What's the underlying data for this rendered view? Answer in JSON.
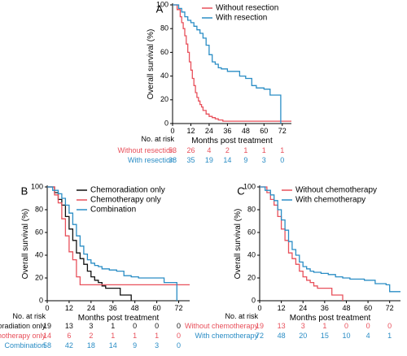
{
  "colors": {
    "red": "#e8505b",
    "blue": "#2a8dc5",
    "black": "#111111"
  },
  "chart_data": [
    {
      "type": "line",
      "panel_label": "A",
      "xlabel": "Months post treatment",
      "ylabel": "Overall survival (%)",
      "xlim": [
        0,
        78
      ],
      "ylim": [
        0,
        100
      ],
      "xticks": [
        0,
        12,
        24,
        36,
        48,
        60,
        72
      ],
      "yticks": [
        0,
        20,
        40,
        60,
        80,
        100
      ],
      "legend_position": "top-right",
      "series": [
        {
          "name": "Without resection",
          "color": "red",
          "x": [
            0,
            3,
            5,
            6,
            7,
            8,
            9,
            10,
            11,
            12,
            13,
            14,
            15,
            16,
            17,
            18,
            19,
            20,
            22,
            24,
            26,
            28,
            30,
            33,
            36,
            48,
            60,
            72,
            78
          ],
          "y": [
            100,
            96,
            90,
            85,
            80,
            74,
            67,
            60,
            52,
            45,
            38,
            32,
            26,
            22,
            19,
            16,
            14,
            11,
            8,
            6,
            5,
            4,
            3,
            2,
            2,
            2,
            2,
            2,
            2
          ]
        },
        {
          "name": "With resection",
          "color": "blue",
          "x": [
            0,
            4,
            6,
            8,
            10,
            12,
            14,
            16,
            18,
            20,
            22,
            24,
            26,
            28,
            30,
            32,
            36,
            40,
            44,
            48,
            52,
            55,
            60,
            64,
            70,
            71
          ],
          "y": [
            100,
            97,
            94,
            90,
            87,
            85,
            82,
            79,
            76,
            72,
            66,
            58,
            52,
            50,
            47,
            46,
            44,
            44,
            40,
            38,
            32,
            30,
            29,
            24,
            24,
            0
          ]
        }
      ],
      "risk_table": {
        "title": "No. at risk",
        "rows": [
          {
            "label": "Without resection",
            "color": "red",
            "values": [
              "53",
              "26",
              "4",
              "2",
              "1",
              "1",
              "1"
            ]
          },
          {
            "label": "With resection",
            "color": "blue",
            "values": [
              "38",
              "35",
              "19",
              "14",
              "9",
              "3",
              "0"
            ]
          }
        ]
      }
    },
    {
      "type": "line",
      "panel_label": "B",
      "xlabel": "Months post treatment",
      "ylabel": "Overall survival (%)",
      "xlim": [
        0,
        78
      ],
      "ylim": [
        0,
        100
      ],
      "xticks": [
        0,
        12,
        24,
        36,
        48,
        60,
        72
      ],
      "yticks": [
        0,
        20,
        40,
        60,
        80,
        100
      ],
      "legend_position": "top-right",
      "series": [
        {
          "name": "Chemoradiation only",
          "color": "black",
          "x": [
            0,
            4,
            6,
            8,
            10,
            12,
            14,
            16,
            18,
            20,
            22,
            24,
            26,
            28,
            30,
            32,
            36,
            40,
            44,
            46
          ],
          "y": [
            100,
            95,
            89,
            84,
            74,
            63,
            53,
            42,
            37,
            32,
            26,
            21,
            18,
            16,
            13,
            11,
            11,
            5,
            5,
            0
          ]
        },
        {
          "name": "Chemotherapy only",
          "color": "red",
          "x": [
            0,
            4,
            6,
            8,
            10,
            12,
            14,
            16,
            18,
            24,
            36,
            48,
            60,
            72,
            78
          ],
          "y": [
            100,
            93,
            86,
            72,
            57,
            43,
            36,
            21,
            14,
            14,
            14,
            14,
            14,
            14,
            14
          ]
        },
        {
          "name": "Combination",
          "color": "blue",
          "x": [
            0,
            3,
            6,
            8,
            10,
            12,
            14,
            16,
            18,
            20,
            22,
            24,
            26,
            28,
            30,
            34,
            38,
            42,
            46,
            50,
            58,
            64,
            70,
            71
          ],
          "y": [
            100,
            97,
            94,
            90,
            84,
            77,
            67,
            57,
            48,
            41,
            36,
            33,
            31,
            30,
            28,
            27,
            26,
            22,
            21,
            20,
            20,
            16,
            16,
            0
          ]
        }
      ],
      "risk_table": {
        "title": "No. at risk",
        "rows": [
          {
            "label": "Chemoradiation only",
            "color": "black",
            "values": [
              "19",
              "13",
              "3",
              "1",
              "0",
              "0",
              "0"
            ]
          },
          {
            "label": "Chemotherapy only",
            "color": "red",
            "values": [
              "14",
              "6",
              "2",
              "1",
              "1",
              "1",
              "0"
            ]
          },
          {
            "label": "Combination",
            "color": "blue",
            "values": [
              "58",
              "42",
              "18",
              "14",
              "9",
              "3",
              "0"
            ]
          }
        ]
      }
    },
    {
      "type": "line",
      "panel_label": "C",
      "xlabel": "Months post treatment",
      "ylabel": "Overall survival (%)",
      "xlim": [
        0,
        78
      ],
      "ylim": [
        0,
        100
      ],
      "xticks": [
        0,
        12,
        24,
        36,
        48,
        60,
        72
      ],
      "yticks": [
        0,
        20,
        40,
        60,
        80,
        100
      ],
      "legend_position": "top-right",
      "series": [
        {
          "name": "Without chemotherapy",
          "color": "red",
          "x": [
            0,
            4,
            6,
            8,
            10,
            12,
            14,
            16,
            18,
            20,
            22,
            24,
            26,
            28,
            30,
            32,
            36,
            40,
            44,
            46
          ],
          "y": [
            100,
            95,
            89,
            84,
            74,
            63,
            53,
            42,
            37,
            32,
            26,
            21,
            18,
            16,
            13,
            11,
            11,
            5,
            5,
            0
          ]
        },
        {
          "name": "With chemotherapy",
          "color": "blue",
          "x": [
            0,
            3,
            6,
            8,
            10,
            12,
            14,
            16,
            18,
            20,
            22,
            24,
            26,
            28,
            30,
            34,
            38,
            42,
            46,
            50,
            58,
            64,
            70,
            72,
            78
          ],
          "y": [
            100,
            97,
            93,
            88,
            80,
            71,
            62,
            52,
            45,
            40,
            34,
            30,
            28,
            26,
            25,
            24,
            23,
            21,
            20,
            19,
            18,
            15,
            14,
            8,
            8
          ]
        }
      ],
      "risk_table": {
        "title": "No. at risk",
        "rows": [
          {
            "label": "Without chemotherapy",
            "color": "red",
            "values": [
              "19",
              "13",
              "3",
              "1",
              "0",
              "0",
              "0"
            ]
          },
          {
            "label": "With chemotherapy",
            "color": "blue",
            "values": [
              "72",
              "48",
              "20",
              "15",
              "10",
              "4",
              "1"
            ]
          }
        ]
      }
    }
  ]
}
